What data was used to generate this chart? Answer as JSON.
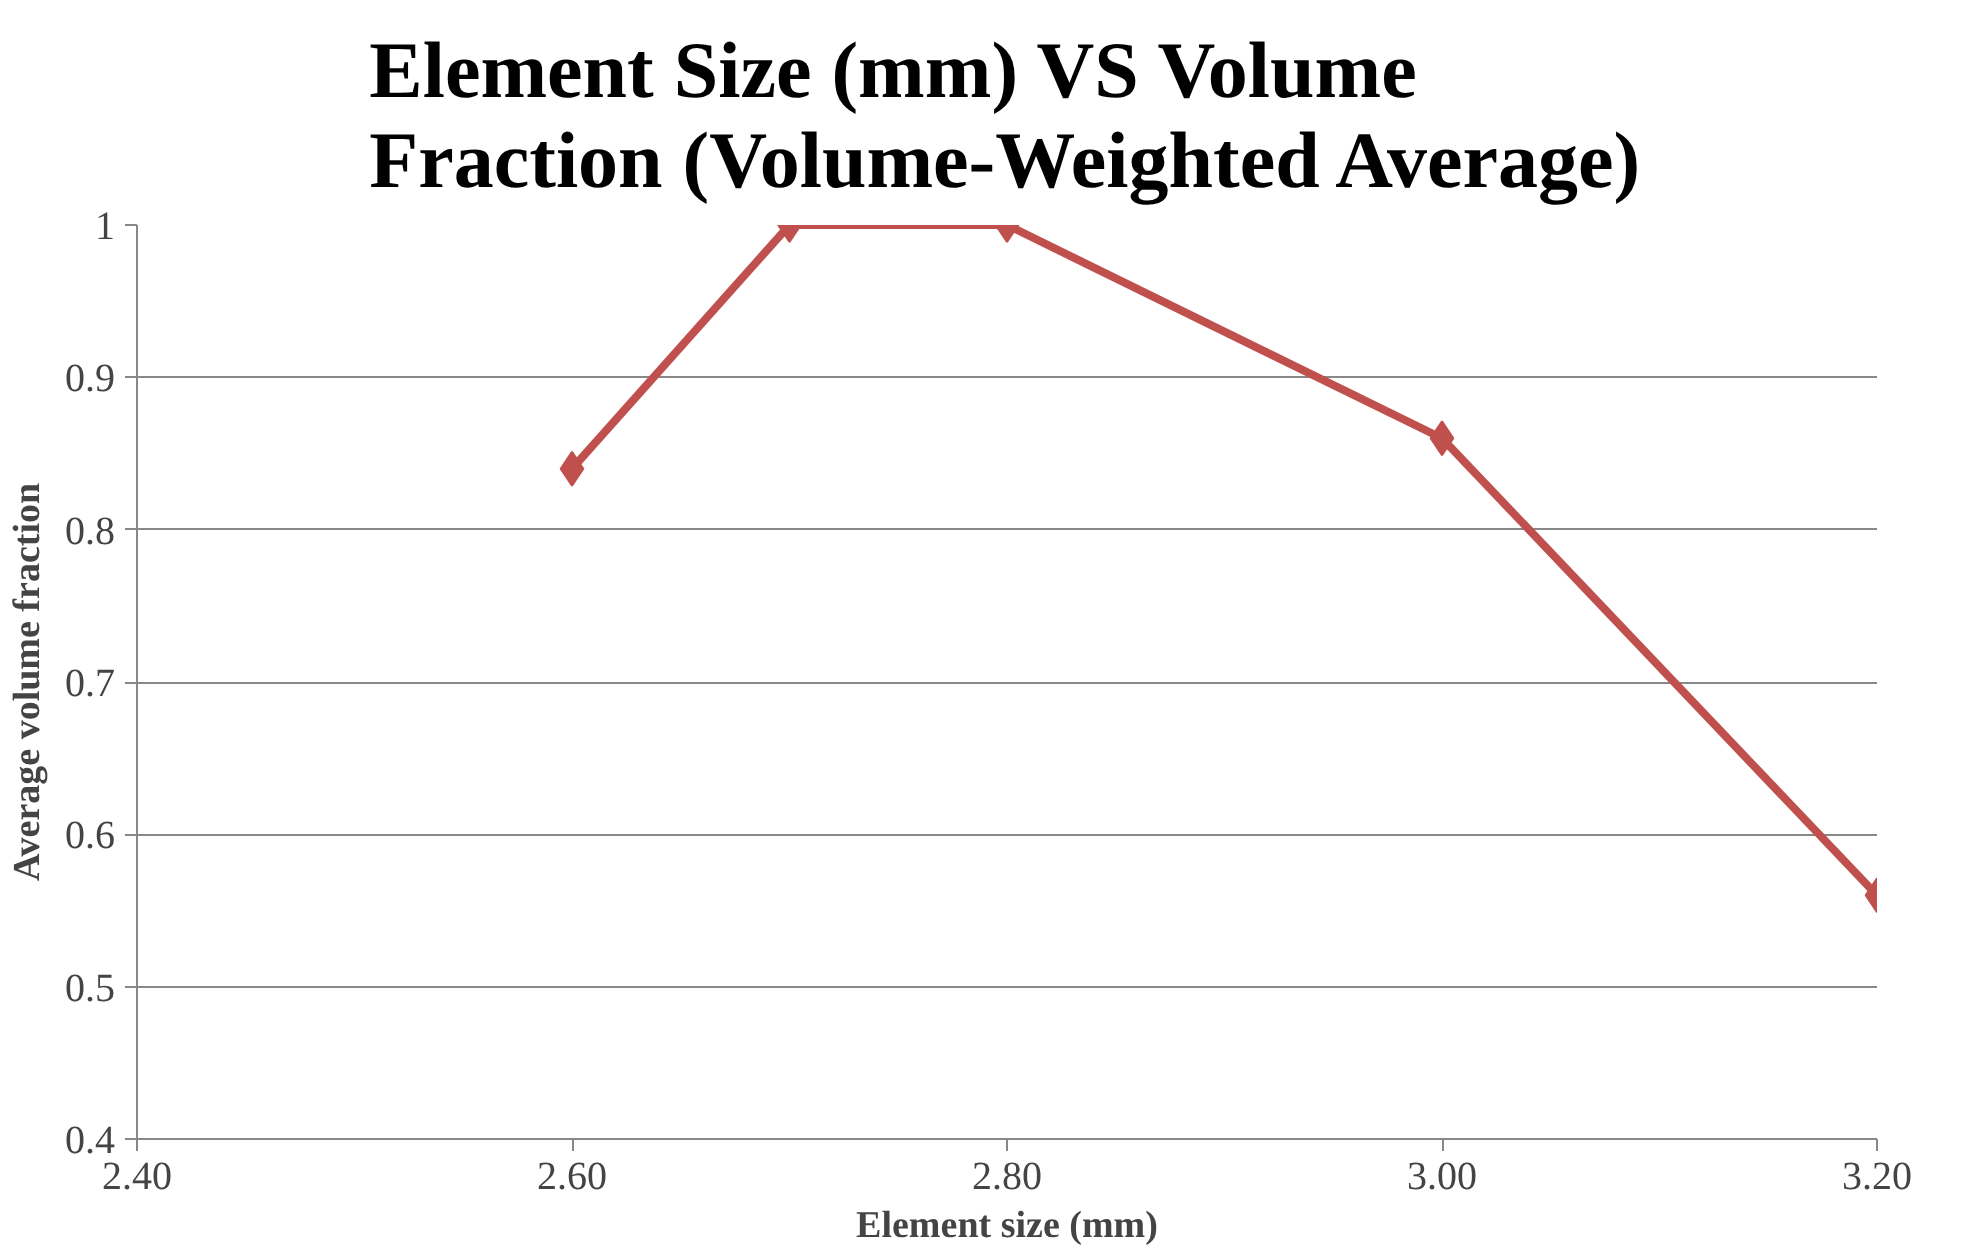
{
  "chart_data": {
    "type": "line",
    "title": "Element Size (mm) VS Volume\nFraction (Volume-Weighted Average)",
    "xlabel": "Element size (mm)",
    "ylabel": "Average volume fraction",
    "x": [
      2.6,
      2.7,
      2.8,
      3.0,
      3.2
    ],
    "series": [
      {
        "color": "#c0504d",
        "values": [
          0.84,
          1.0,
          1.0,
          0.86,
          0.56
        ]
      }
    ],
    "xlim": [
      2.4,
      3.2
    ],
    "xticks": [
      {
        "value": 2.4,
        "label": "2.40"
      },
      {
        "value": 2.6,
        "label": "2.60"
      },
      {
        "value": 2.8,
        "label": "2.80"
      },
      {
        "value": 3.0,
        "label": "3.00"
      },
      {
        "value": 3.2,
        "label": "3.20"
      }
    ],
    "ylim": [
      0.4,
      1
    ],
    "yticks": [
      0.4,
      0.5,
      0.6,
      0.7,
      0.8,
      0.9,
      1
    ],
    "grid": "y",
    "marker": "diamond",
    "line_style": "solid"
  }
}
